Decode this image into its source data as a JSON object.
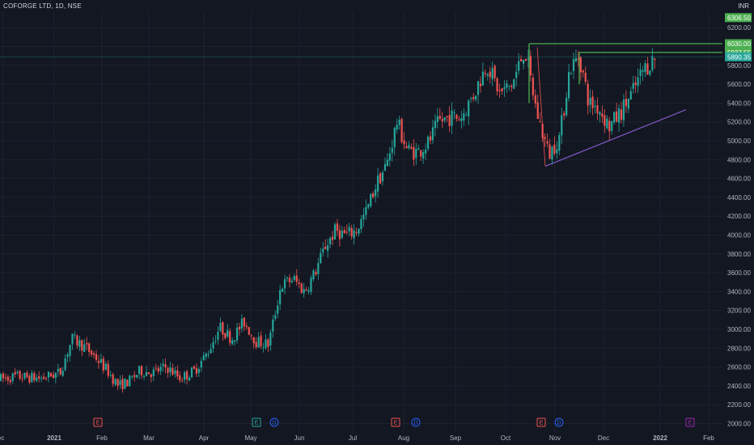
{
  "header": {
    "symbol_title": "COFORGE LTD, 1D, NSE",
    "currency": "INR"
  },
  "colors": {
    "background": "#131722",
    "grid": "#1e222d",
    "up": "#26a69a",
    "down": "#ef5350",
    "resistance": "#4caf50",
    "support": "#7e57c2",
    "dividend": "#2962ff",
    "earnings_future": "#9c27b0"
  },
  "chart_data": {
    "type": "candlestick",
    "title": "COFORGE LTD, 1D, NSE",
    "ylim": [
      1950,
      6480
    ],
    "y_ticks": [
      2000,
      2200,
      2400,
      2600,
      2800,
      3000,
      3200,
      3400,
      3600,
      3800,
      4000,
      4200,
      4400,
      4600,
      4800,
      5000,
      5200,
      5400,
      5600,
      5800,
      6000,
      6200
    ],
    "y_tick_labels": [
      "2000.00",
      "2200.00",
      "2400.00",
      "2600.00",
      "2800.00",
      "3000.00",
      "3200.00",
      "3400.00",
      "3600.00",
      "3800.00",
      "4000.00",
      "4200.00",
      "4400.00",
      "4600.00",
      "4800.00",
      "5000.00",
      "5200.00",
      "5400.00",
      "5600.00",
      "5800.00",
      "6000.00",
      "6200.00"
    ],
    "x_axis_labels": [
      "ec",
      "2021",
      "Feb",
      "Mar",
      "Apr",
      "May",
      "Jun",
      "Jul",
      "Aug",
      "Sep",
      "Oct",
      "Nov",
      "Dec",
      "2022",
      "Feb"
    ],
    "price_labels": [
      {
        "value": 6306.5,
        "text": "6306.50",
        "color": "#4caf50"
      },
      {
        "value": 6030.0,
        "text": "6030.00",
        "color": "#4caf50"
      },
      {
        "value": 5937.55,
        "text": "5937.55",
        "color": "#4caf50"
      },
      {
        "value": 5890.35,
        "text": "5890.35",
        "color": "#26a69a"
      }
    ],
    "resistance_levels": [
      6030.0,
      5937.55
    ],
    "last_price": 5890.35,
    "support_line": {
      "from": {
        "date": "2021-10-25",
        "value": 4730
      },
      "to": {
        "date": "2022-01-17",
        "value": 5330
      }
    },
    "events": [
      {
        "type": "E",
        "label": "E",
        "month": "2021-01",
        "color": "#ef5350"
      },
      {
        "type": "E",
        "label": "E",
        "month": "2021-05",
        "color": "#26a69a"
      },
      {
        "type": "D",
        "label": "D",
        "month": "2021-05",
        "color": "#2962ff"
      },
      {
        "type": "E",
        "label": "E",
        "month": "2021-07",
        "color": "#ef5350"
      },
      {
        "type": "D",
        "label": "D",
        "month": "2021-08",
        "color": "#2962ff"
      },
      {
        "type": "E",
        "label": "E",
        "month": "2021-10",
        "color": "#ef5350"
      },
      {
        "type": "D",
        "label": "D",
        "month": "2021-11",
        "color": "#2962ff"
      },
      {
        "type": "E",
        "label": "E",
        "month": "2022-01",
        "color": "#9c27b0"
      }
    ],
    "monthly_path": [
      {
        "month": "2020-12",
        "values": [
          2450,
          2500,
          2480
        ]
      },
      {
        "month": "2021-01",
        "values": [
          2540,
          2900,
          2820,
          2700
        ]
      },
      {
        "month": "2021-02",
        "values": [
          2560,
          2400,
          2450,
          2560
        ]
      },
      {
        "month": "2021-03",
        "values": [
          2540,
          2600,
          2480,
          2560
        ]
      },
      {
        "month": "2021-04",
        "values": [
          2750,
          3020,
          2900,
          3080
        ]
      },
      {
        "month": "2021-05",
        "values": [
          2870,
          2840,
          3460,
          3540
        ]
      },
      {
        "month": "2021-06",
        "values": [
          3400,
          3600,
          3880,
          4050,
          4000
        ]
      },
      {
        "month": "2021-07",
        "values": [
          4050,
          4250,
          4550,
          4750,
          5200
        ]
      },
      {
        "month": "2021-08",
        "values": [
          4900,
          4880,
          4980,
          5200,
          5250
        ]
      },
      {
        "month": "2021-09",
        "values": [
          5250,
          5500,
          5820,
          5500
        ]
      },
      {
        "month": "2021-10",
        "values": [
          5600,
          5980,
          5300,
          4850
        ]
      },
      {
        "month": "2021-11",
        "values": [
          5050,
          5760,
          5900,
          5400,
          5350
        ]
      },
      {
        "month": "2021-12",
        "values": [
          5150,
          5300,
          5500,
          5750,
          5880
        ]
      }
    ]
  }
}
